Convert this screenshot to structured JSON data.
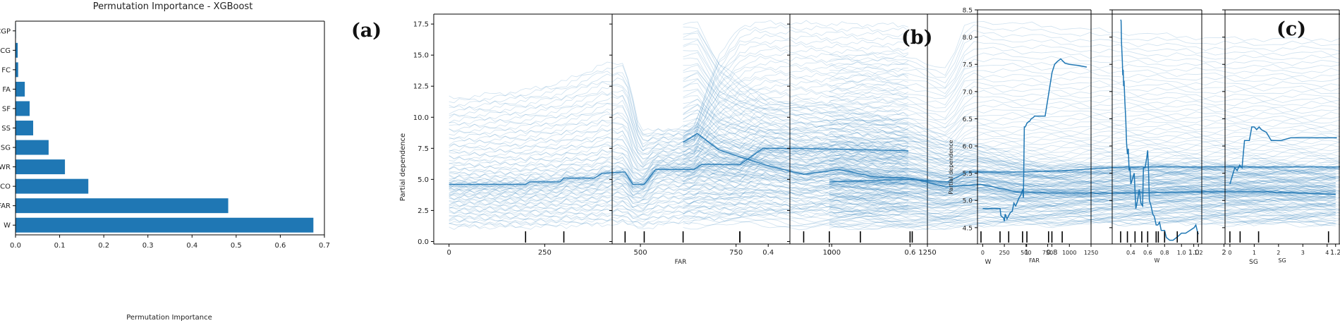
{
  "figure": {
    "panel_letters": [
      "(a)",
      "(b)",
      "(c)"
    ]
  },
  "colors": {
    "bar": "#1f77b4",
    "line": "#1f77b4",
    "axis": "#000000",
    "rug": "#000000"
  },
  "chart_data": [
    {
      "id": "a",
      "type": "bar",
      "orientation": "horizontal",
      "title": "Permutation Importance - XGBoost",
      "xlabel": "Permutation Importance",
      "ylabel": "",
      "xlim": [
        0,
        0.7
      ],
      "xticks": [
        0.0,
        0.1,
        0.2,
        0.3,
        0.4,
        0.5,
        0.6,
        0.7
      ],
      "xtick_labels": [
        "0.0",
        "0.1",
        "0.2",
        "0.3",
        "0.4",
        "0.5",
        "0.6",
        "0.7"
      ],
      "categories": [
        "W",
        "FAR",
        "FCO",
        "WR",
        "SG",
        "SS",
        "SF",
        "FA",
        "FC",
        "CG",
        "CGP"
      ],
      "values": [
        0.675,
        0.482,
        0.165,
        0.112,
        0.075,
        0.04,
        0.032,
        0.021,
        0.006,
        0.005,
        0.001
      ],
      "grid": false
    },
    {
      "id": "b",
      "type": "line",
      "description": "ICE curves with rug marks",
      "ylabel": "Partial dependence",
      "ylim": [
        -0.2,
        18.3
      ],
      "yticks": [
        0.0,
        2.5,
        5.0,
        7.5,
        10.0,
        12.5,
        15.0,
        17.5
      ],
      "ytick_labels": [
        "0.0",
        "2.5",
        "5.0",
        "7.5",
        "10.0",
        "12.5",
        "15.0",
        "17.5"
      ],
      "subplots": [
        {
          "xlabel": "FAR",
          "xlim": [
            -40,
            1250
          ],
          "xticks": [
            0,
            250,
            500,
            750,
            1000,
            1250
          ],
          "xtick_labels": [
            "0",
            "250",
            "500",
            "750",
            "1000",
            "1250"
          ],
          "rug": [
            200,
            300,
            460,
            510,
            760
          ],
          "representative_curve": {
            "x": [
              0,
              200,
              210,
              290,
              300,
              380,
              400,
              460,
              480,
              510,
              540,
              640,
              660,
              760,
              820,
              900,
              1200
            ],
            "y": [
              4.6,
              4.6,
              4.8,
              4.8,
              5.1,
              5.1,
              5.5,
              5.6,
              4.6,
              4.6,
              5.8,
              5.8,
              6.2,
              6.2,
              7.5,
              7.5,
              7.3
            ]
          },
          "curve_range": {
            "x": [
              0,
              200,
              300,
              400,
              460,
              500,
              640,
              700,
              760,
              800,
              1200
            ],
            "low": [
              1.1,
              1.1,
              1.2,
              1.3,
              1.4,
              1.0,
              1.6,
              1.7,
              1.9,
              2.1,
              2.1
            ],
            "high": [
              11.6,
              12.3,
              13.0,
              14.4,
              14.5,
              8.9,
              9.3,
              14.8,
              17.5,
              17.8,
              17.6
            ]
          }
        },
        {
          "xlabel": "W",
          "xlim": [
            0.18,
            1.24
          ],
          "xticks": [
            0.4,
            0.6,
            0.8,
            1.0,
            1.2
          ],
          "xtick_labels": [
            "0.4",
            "0.6",
            "0.8",
            "1.0",
            "1.2"
          ],
          "rug": [
            0.28,
            0.36,
            0.45,
            0.53,
            0.6,
            0.7,
            0.8,
            0.95,
            1.19
          ],
          "representative_curve": {
            "x": [
              0.28,
              0.3,
              0.33,
              0.36,
              0.4,
              0.45,
              0.5,
              0.55,
              0.6,
              0.65,
              0.7,
              0.75,
              0.8,
              0.9,
              1.0,
              1.1,
              1.2
            ],
            "y": [
              8.0,
              8.7,
              7.4,
              6.8,
              6.1,
              5.4,
              5.8,
              5.2,
              5.1,
              4.4,
              4.6,
              4.0,
              3.9,
              3.9,
              4.0,
              4.0,
              3.8
            ]
          },
          "curve_range": {
            "x": [
              0.28,
              0.3,
              0.33,
              0.36,
              0.4,
              0.45,
              0.5,
              0.55,
              0.6,
              0.65,
              0.7,
              0.8,
              0.9,
              1.0,
              1.2
            ],
            "low": [
              1.0,
              1.1,
              1.2,
              1.3,
              1.2,
              1.0,
              1.1,
              1.2,
              1.0,
              1.1,
              1.3,
              1.3,
              1.4,
              1.4,
              1.3
            ],
            "high": [
              17.8,
              17.9,
              14.5,
              13.0,
              11.6,
              11.3,
              10.9,
              10.2,
              9.8,
              8.5,
              7.8,
              6.2,
              6.1,
              6.3,
              5.9
            ]
          }
        },
        {
          "xlabel": "SG",
          "xlim": [
            -0.2,
            4.5
          ],
          "xticks": [
            0,
            1,
            2,
            3,
            4
          ],
          "xtick_labels": [
            "0",
            "1",
            "2",
            "3",
            "4"
          ],
          "rug": [
            0.0,
            0.42,
            1.18
          ],
          "representative_curve": {
            "x": [
              0.0,
              0.2,
              0.42,
              0.6,
              0.7,
              1.0,
              1.18,
              1.5,
              2.0,
              3.0,
              4.4
            ],
            "y": [
              4.8,
              4.9,
              5.0,
              4.8,
              5.6,
              5.6,
              5.7,
              6.0,
              6.0,
              6.0,
              6.0
            ]
          },
          "curve_range": {
            "x": [
              0.0,
              0.2,
              0.42,
              0.6,
              0.7,
              1.0,
              1.5,
              2.0,
              4.4
            ],
            "low": [
              1.0,
              1.0,
              1.0,
              1.0,
              1.2,
              1.3,
              1.4,
              1.4,
              1.4
            ],
            "high": [
              15.0,
              15.4,
              15.0,
              14.0,
              18.0,
              17.7,
              17.0,
              16.5,
              16.5
            ]
          }
        }
      ]
    },
    {
      "id": "c",
      "type": "line",
      "description": "Partial dependence with rug marks",
      "ylabel": "Partial dependence",
      "ylim": [
        4.2,
        8.5
      ],
      "yticks": [
        4.5,
        5.0,
        5.5,
        6.0,
        6.5,
        7.0,
        7.5,
        8.0,
        8.5
      ],
      "ytick_labels": [
        "4.5",
        "5.0",
        "5.5",
        "6.0",
        "6.5",
        "7.0",
        "7.5",
        "8.0",
        "8.5"
      ],
      "subplots": [
        {
          "xlabel": "FAR",
          "xlim": [
            -60,
            1250
          ],
          "xticks": [
            0,
            250,
            500,
            750,
            1000,
            1250
          ],
          "xtick_labels": [
            "0",
            "250",
            "500",
            "750",
            "1000",
            "1250"
          ],
          "rug": [
            200,
            300,
            460,
            510,
            760
          ],
          "x": [
            0,
            200,
            210,
            240,
            250,
            260,
            280,
            300,
            320,
            340,
            360,
            380,
            400,
            420,
            440,
            460,
            470,
            480,
            490,
            500,
            510,
            520,
            530,
            540,
            560,
            580,
            600,
            620,
            640,
            660,
            700,
            720,
            760,
            800,
            830,
            860,
            900,
            950,
            1000,
            1100,
            1200
          ],
          "y": [
            4.85,
            4.85,
            4.72,
            4.68,
            4.62,
            4.75,
            4.66,
            4.72,
            4.78,
            4.8,
            4.95,
            4.9,
            4.97,
            5.05,
            5.1,
            5.2,
            5.05,
            6.35,
            6.35,
            6.38,
            6.42,
            6.43,
            6.45,
            6.45,
            6.5,
            6.52,
            6.55,
            6.55,
            6.55,
            6.55,
            6.55,
            6.55,
            6.95,
            7.35,
            7.5,
            7.55,
            7.6,
            7.52,
            7.5,
            7.48,
            7.45
          ]
        },
        {
          "xlabel": "W",
          "xlim": [
            0.18,
            1.24
          ],
          "xticks": [
            0.4,
            0.6,
            0.8,
            1.0,
            1.2
          ],
          "xtick_labels": [
            "0.4",
            "0.6",
            "0.8",
            "1.0",
            "1.2"
          ],
          "rug": [
            0.28,
            0.36,
            0.45,
            0.53,
            0.6,
            0.7,
            0.8,
            0.95,
            1.19
          ],
          "x": [
            0.28,
            0.285,
            0.29,
            0.3,
            0.305,
            0.31,
            0.315,
            0.32,
            0.33,
            0.34,
            0.35,
            0.36,
            0.37,
            0.38,
            0.39,
            0.4,
            0.42,
            0.44,
            0.46,
            0.48,
            0.5,
            0.52,
            0.54,
            0.55,
            0.57,
            0.59,
            0.6,
            0.61,
            0.62,
            0.64,
            0.66,
            0.68,
            0.7,
            0.72,
            0.74,
            0.76,
            0.78,
            0.8,
            0.82,
            0.86,
            0.9,
            0.95,
            1.0,
            1.05,
            1.1,
            1.15,
            1.17,
            1.19,
            1.2
          ],
          "y": [
            8.32,
            8.3,
            7.9,
            7.55,
            7.3,
            7.4,
            7.1,
            7.2,
            6.8,
            6.5,
            6.05,
            5.85,
            5.95,
            5.55,
            5.6,
            5.3,
            5.4,
            5.5,
            4.85,
            5.0,
            5.2,
            4.95,
            4.9,
            5.6,
            5.6,
            5.8,
            5.92,
            5.55,
            5.0,
            4.9,
            4.75,
            4.7,
            4.55,
            4.55,
            4.6,
            4.45,
            4.45,
            4.45,
            4.32,
            4.27,
            4.27,
            4.33,
            4.4,
            4.4,
            4.45,
            4.5,
            4.55,
            4.42,
            4.38
          ]
        },
        {
          "xlabel": "SG",
          "xlim": [
            -0.2,
            4.5
          ],
          "xticks": [
            0,
            1,
            2,
            3,
            4
          ],
          "xtick_labels": [
            "0",
            "1",
            "2",
            "3",
            "4"
          ],
          "rug": [
            0.0,
            0.42,
            1.18
          ],
          "x": [
            0.0,
            0.1,
            0.2,
            0.3,
            0.4,
            0.5,
            0.6,
            0.7,
            0.8,
            0.9,
            1.0,
            1.1,
            1.2,
            1.3,
            1.5,
            1.7,
            1.9,
            2.1,
            2.5,
            3.0,
            3.5,
            4.0,
            4.4
          ],
          "y": [
            5.3,
            5.45,
            5.6,
            5.55,
            5.65,
            5.6,
            6.1,
            6.1,
            6.1,
            6.35,
            6.35,
            6.3,
            6.35,
            6.3,
            6.25,
            6.1,
            6.1,
            6.1,
            6.15,
            6.15,
            6.15,
            6.15,
            6.15
          ]
        }
      ]
    }
  ]
}
